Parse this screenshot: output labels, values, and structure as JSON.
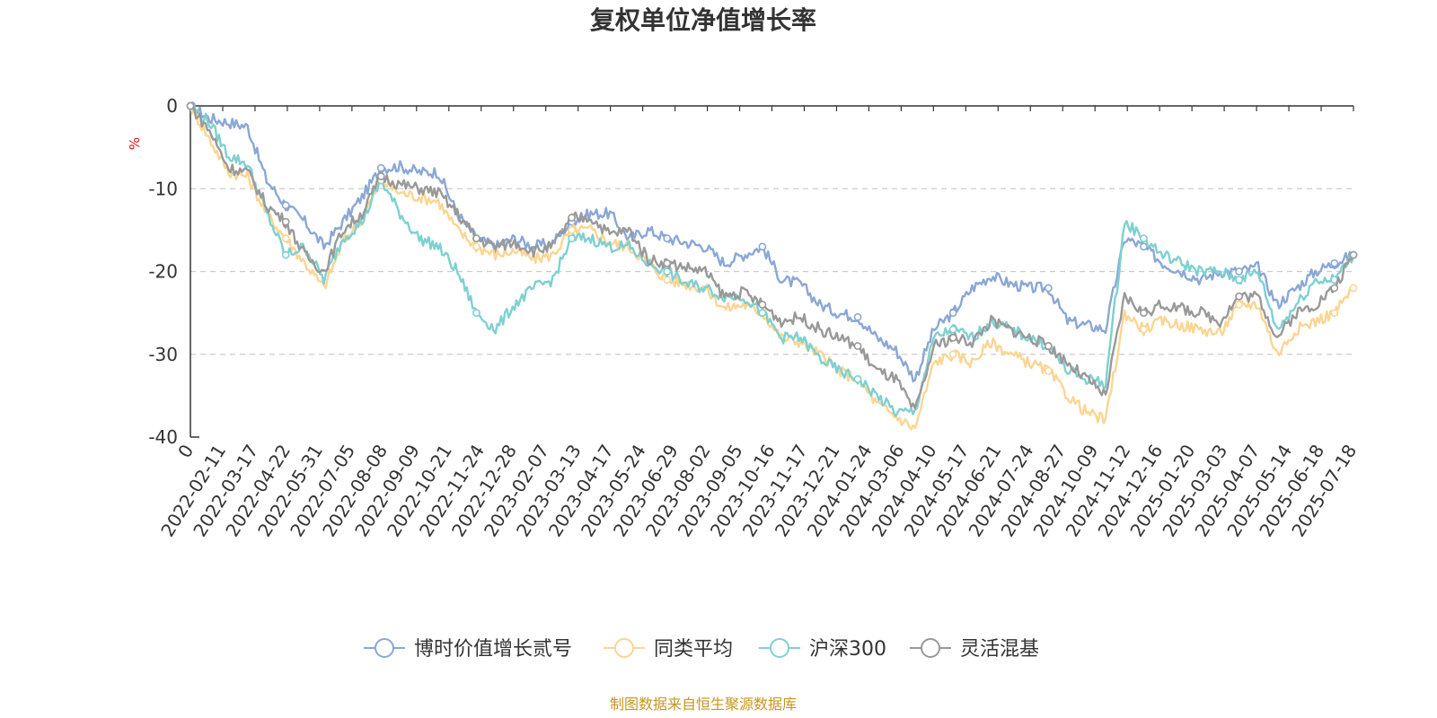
{
  "chart_data": {
    "type": "line",
    "title": "复权单位净值增长率",
    "ylabel": "%",
    "ylim": [
      -40,
      0
    ],
    "yticks": [
      0,
      -10,
      -20,
      -30,
      -40
    ],
    "grid": true,
    "legend_position": "bottom",
    "source": "制图数据来自恒生聚源数据库",
    "x_tick_labels": [
      "0",
      "2022-02-11",
      "2022-03-17",
      "2022-04-22",
      "2022-05-31",
      "2022-07-05",
      "2022-08-08",
      "2022-09-09",
      "2022-10-21",
      "2022-11-24",
      "2022-12-28",
      "2023-02-07",
      "2023-03-13",
      "2023-04-17",
      "2023-05-24",
      "2023-06-29",
      "2023-08-02",
      "2023-09-05",
      "2023-10-16",
      "2023-11-17",
      "2023-12-21",
      "2024-01-24",
      "2024-03-06",
      "2024-04-10",
      "2024-05-17",
      "2024-06-21",
      "2024-07-24",
      "2024-08-27",
      "2024-10-09",
      "2024-11-12",
      "2024-12-16",
      "2025-01-20",
      "2025-03-03",
      "2025-04-07",
      "2025-05-14",
      "2025-06-18",
      "2025-07-18"
    ],
    "series": [
      {
        "name": "博时价值增长贰号",
        "color": "#8aa7d6",
        "values": [
          0,
          -1.5,
          -2,
          -2.5,
          -9,
          -12,
          -14,
          -17,
          -14,
          -11,
          -7.5,
          -7.3,
          -8,
          -8,
          -13,
          -16,
          -17,
          -16,
          -17,
          -16.5,
          -14,
          -13,
          -13,
          -16,
          -15,
          -16,
          -16.5,
          -17,
          -19,
          -18,
          -17,
          -21,
          -21.5,
          -24,
          -25,
          -25.5,
          -28,
          -29.5,
          -33,
          -27,
          -25,
          -22,
          -20.5,
          -21.5,
          -22,
          -22,
          -26,
          -26.5,
          -27,
          -16,
          -17,
          -19,
          -20,
          -21,
          -20,
          -20,
          -19.5,
          -24,
          -22,
          -20,
          -19,
          -18
        ]
      },
      {
        "name": "同类平均",
        "color": "#fbd592",
        "values": [
          0,
          -4,
          -8,
          -8.5,
          -13,
          -16,
          -19,
          -22,
          -16.5,
          -13.5,
          -9,
          -10.5,
          -11,
          -11.5,
          -15,
          -17,
          -18,
          -17.5,
          -18.5,
          -18,
          -15,
          -15,
          -16.5,
          -17,
          -19,
          -21,
          -21.5,
          -22,
          -24.5,
          -24,
          -25,
          -28,
          -28.5,
          -30,
          -32,
          -33,
          -36,
          -37.5,
          -39,
          -31,
          -30,
          -31,
          -28.5,
          -30,
          -31,
          -32,
          -35,
          -37,
          -38,
          -25,
          -27,
          -26,
          -26.5,
          -27,
          -27.5,
          -24,
          -24,
          -30,
          -27,
          -26,
          -25,
          -22
        ]
      },
      {
        "name": "沪深300",
        "color": "#7fd0d0",
        "values": [
          0,
          -2,
          -6,
          -7,
          -13,
          -18,
          -17,
          -21,
          -16,
          -14,
          -9,
          -13,
          -16,
          -17,
          -20,
          -25,
          -27,
          -24,
          -22,
          -21,
          -16,
          -16,
          -17,
          -17,
          -19,
          -20,
          -21.5,
          -22,
          -23,
          -23,
          -25,
          -28,
          -28,
          -30.5,
          -32,
          -33,
          -35,
          -37,
          -37,
          -28,
          -27,
          -28,
          -26,
          -27,
          -28,
          -29,
          -32,
          -33,
          -33.5,
          -14,
          -16,
          -18,
          -19,
          -20,
          -20,
          -21,
          -20,
          -27,
          -24,
          -21,
          -21,
          -18
        ]
      },
      {
        "name": "灵活混基",
        "color": "#999999",
        "values": [
          0,
          -3,
          -7.5,
          -8,
          -12,
          -14,
          -18,
          -20,
          -15,
          -13,
          -8.5,
          -9.5,
          -10,
          -10.5,
          -13,
          -16,
          -17,
          -16.5,
          -17.5,
          -17,
          -13.5,
          -13.5,
          -15.5,
          -15,
          -18.5,
          -19,
          -19.5,
          -20,
          -23,
          -22.5,
          -24,
          -26,
          -25.5,
          -27,
          -28,
          -29,
          -32,
          -33,
          -37,
          -29,
          -28,
          -28.5,
          -26,
          -27,
          -28,
          -29,
          -31,
          -33,
          -35,
          -23,
          -25,
          -24,
          -24.5,
          -25,
          -26,
          -23,
          -23,
          -28,
          -25,
          -24,
          -22,
          -18
        ]
      }
    ]
  }
}
